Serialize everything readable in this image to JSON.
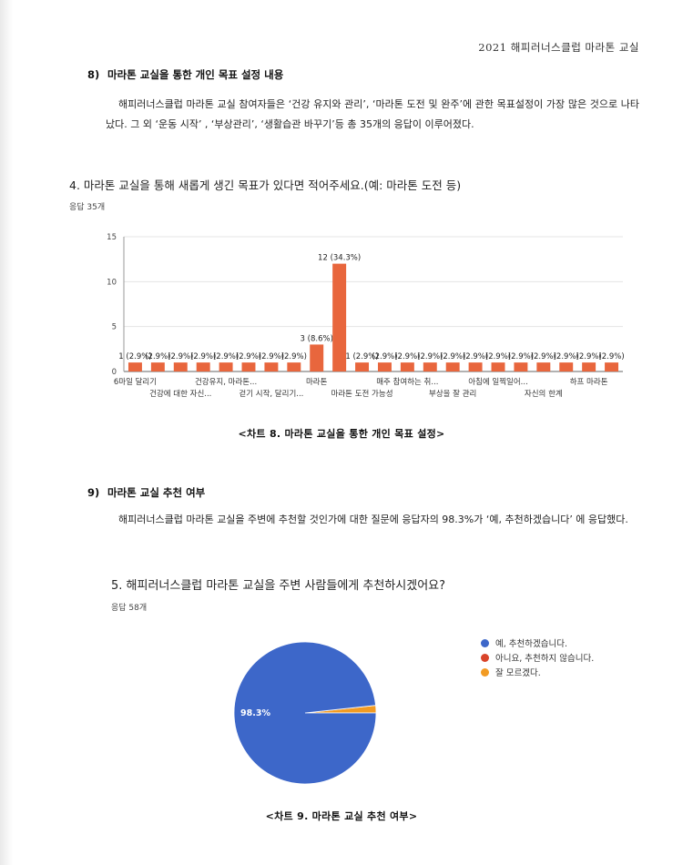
{
  "header": {
    "text": "2021 해피러너스클럽 마라톤 교실"
  },
  "section8": {
    "number": "8)",
    "title": "마라톤 교실을 통한 개인 목표 설정 내용",
    "paragraph": "해피러너스클럽 마라톤 교실 참여자들은 ‘건강 유지와 관리’, ‘마라톤 도전 및 완주’에 관한 목표설정이 가장 많은 것으로 나타났다. 그 외 ‘운동 시작’ , ‘부상관리’, ‘생활습관 바꾸기’등 총 35개의 응답이 이루어졌다."
  },
  "question4": {
    "title": "4. 마라톤 교실을 통해 새롭게 생긴 목표가 있다면 적어주세요.(예: 마라톤 도전 등)",
    "responses": "응답 35개"
  },
  "caption8": "<차트 8. 마라톤 교실을 통한 개인 목표 설정>",
  "section9": {
    "number": "9)",
    "title": "마라톤 교실 추천 여부",
    "paragraph": "해피러너스클럽 마라톤 교실을 주변에 추천할 것인가에 대한 질문에 응답자의 98.3%가 ‘예, 추천하겠습니다’ 에 응답했다."
  },
  "question5": {
    "title": "5. 해피러너스클럽 마라톤 교실을 주변 사람들에게 추천하시겠어요?",
    "responses": "응답 58개"
  },
  "caption9": "<차트 9. 마라톤 교실 추천 여부>",
  "colors": {
    "bar": "#e8663d",
    "pie_yes": "#3d67c9",
    "pie_no": "#d9442a",
    "pie_unsure": "#f29b23"
  },
  "chart_data": [
    {
      "type": "bar",
      "ylim": [
        0,
        15
      ],
      "yticks": [
        0,
        5,
        10,
        15
      ],
      "grid": true,
      "values": [
        1,
        1,
        1,
        1,
        1,
        1,
        1,
        1,
        3,
        12,
        1,
        1,
        1,
        1,
        1,
        1,
        1,
        1,
        1,
        1,
        1,
        1
      ],
      "data_labels": [
        "1 (2.9%)",
        "(2.9%)",
        "(2.9%)",
        "(2.9%)",
        "(2.9%)",
        "(2.9%)",
        "(2.9%)",
        "(2.9%)",
        "3 (8.6%)",
        "12 (34.3%)",
        "1 (2.9%)",
        "(2.9%)",
        "(2.9%)",
        "(2.9%)",
        "(2.9%)",
        "(2.9%)",
        "(2.9%)",
        "(2.9%)",
        "(2.9%)",
        "(2.9%)",
        "(2.9%)",
        "(2.9%)"
      ],
      "tick_labels_row1": [
        {
          "index": 0,
          "text": "6마일 달리기"
        },
        {
          "index": 4,
          "text": "건강유지, 마라톤..."
        },
        {
          "index": 8,
          "text": "마라톤"
        },
        {
          "index": 12,
          "text": "매주 참여하는 취..."
        },
        {
          "index": 16,
          "text": "아침에 일찍일어..."
        },
        {
          "index": 20,
          "text": "하프 마라톤"
        }
      ],
      "tick_labels_row2": [
        {
          "index": 2,
          "text": "건강에 대한 자신..."
        },
        {
          "index": 6,
          "text": "걷기 시작, 달리기..."
        },
        {
          "index": 10,
          "text": "마라톤 도전 가능성"
        },
        {
          "index": 14,
          "text": "부상을 잘 관리"
        },
        {
          "index": 18,
          "text": "자신의 한계"
        }
      ]
    },
    {
      "type": "pie",
      "slices": [
        {
          "label": "예, 추천하겠습니다.",
          "value": 98.3,
          "color": "#3d67c9"
        },
        {
          "label": "아니요, 추천하지 않습니다.",
          "value": 0,
          "color": "#d9442a"
        },
        {
          "label": "잘 모르겠다.",
          "value": 1.7,
          "color": "#f29b23"
        }
      ],
      "slice_label": "98.3%",
      "legend_position": "right"
    }
  ]
}
